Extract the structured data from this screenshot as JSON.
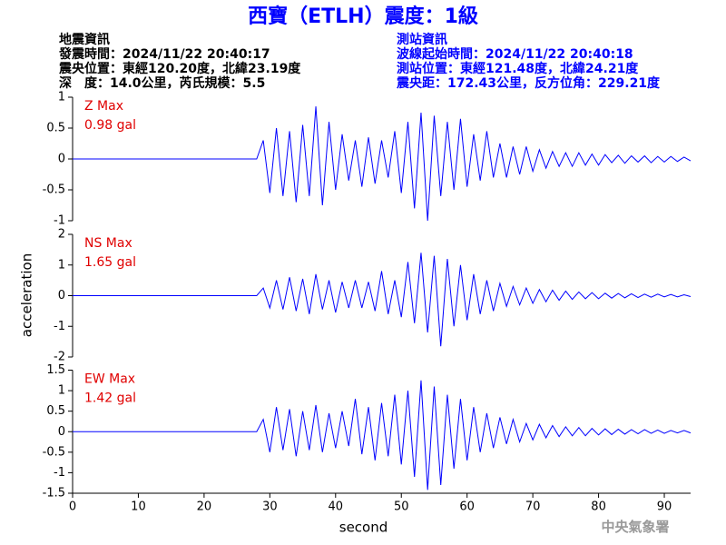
{
  "title": "西寶（ETLH）震度：1級",
  "info_left": [
    "地震資訊",
    "發震時間：2024/11/22 20:40:17",
    "震央位置：東經120.20度，北緯23.19度",
    "深　度：14.0公里，芮氏規模：5.5"
  ],
  "info_right": [
    "測站資訊",
    "波線起始時間：2024/11/22 20:40:18",
    "測站位置：東經121.48度，北緯24.21度",
    "震央距：172.43公里，反方位角：229.21度"
  ],
  "ylabel": "acceleration",
  "watermark": "中央氣象署",
  "chart_data": [
    {
      "type": "line",
      "label": "Z Max",
      "max_label": "0.98 gal",
      "color": "#0000ff",
      "xlim": [
        0,
        94
      ],
      "ylim": [
        -1,
        1
      ],
      "yticks": [
        -1,
        -0.5,
        0,
        0.5,
        1
      ],
      "x": [
        0,
        28,
        29,
        30,
        31,
        32,
        33,
        34,
        35,
        36,
        37,
        38,
        39,
        40,
        41,
        42,
        43,
        44,
        45,
        46,
        47,
        48,
        49,
        50,
        51,
        52,
        53,
        54,
        55,
        56,
        57,
        58,
        59,
        60,
        61,
        62,
        63,
        64,
        65,
        66,
        67,
        68,
        69,
        70,
        71,
        72,
        73,
        74,
        75,
        76,
        77,
        78,
        79,
        80,
        81,
        82,
        83,
        84,
        85,
        86,
        87,
        88,
        89,
        90,
        91,
        92,
        93,
        94
      ],
      "values": [
        0,
        0,
        0.3,
        -0.55,
        0.5,
        -0.6,
        0.45,
        -0.7,
        0.55,
        -0.6,
        0.85,
        -0.75,
        0.6,
        -0.5,
        0.4,
        -0.35,
        0.3,
        -0.45,
        0.35,
        -0.4,
        0.3,
        -0.3,
        0.45,
        -0.55,
        0.6,
        -0.8,
        0.75,
        -1.0,
        0.7,
        -0.6,
        0.6,
        -0.5,
        0.65,
        -0.45,
        0.4,
        -0.35,
        0.45,
        -0.3,
        0.25,
        -0.3,
        0.2,
        -0.25,
        0.2,
        -0.2,
        0.15,
        -0.15,
        0.12,
        -0.12,
        0.1,
        -0.12,
        0.1,
        -0.1,
        0.08,
        -0.1,
        0.07,
        -0.06,
        0.06,
        -0.07,
        0.05,
        -0.05,
        0.05,
        -0.06,
        0.04,
        -0.05,
        0.04,
        -0.04,
        0.03,
        -0.03
      ]
    },
    {
      "type": "line",
      "label": "NS Max",
      "max_label": "1.65 gal",
      "color": "#0000ff",
      "xlim": [
        0,
        94
      ],
      "ylim": [
        -2,
        2
      ],
      "yticks": [
        -2,
        -1,
        0,
        1,
        2
      ],
      "x": [
        0,
        28,
        29,
        30,
        31,
        32,
        33,
        34,
        35,
        36,
        37,
        38,
        39,
        40,
        41,
        42,
        43,
        44,
        45,
        46,
        47,
        48,
        49,
        50,
        51,
        52,
        53,
        54,
        55,
        56,
        57,
        58,
        59,
        60,
        61,
        62,
        63,
        64,
        65,
        66,
        67,
        68,
        69,
        70,
        71,
        72,
        73,
        74,
        75,
        76,
        77,
        78,
        79,
        80,
        81,
        82,
        83,
        84,
        85,
        86,
        87,
        88,
        89,
        90,
        91,
        92,
        93,
        94
      ],
      "values": [
        0,
        0,
        0.25,
        -0.4,
        0.5,
        -0.45,
        0.6,
        -0.5,
        0.55,
        -0.6,
        0.7,
        -0.45,
        0.5,
        -0.55,
        0.45,
        -0.4,
        0.5,
        -0.4,
        0.45,
        -0.5,
        0.8,
        -0.6,
        0.5,
        -0.7,
        1.1,
        -0.9,
        1.4,
        -1.2,
        1.3,
        -1.65,
        1.2,
        -1.0,
        1.0,
        -0.8,
        0.7,
        -0.6,
        0.5,
        -0.5,
        0.4,
        -0.35,
        0.3,
        -0.3,
        0.25,
        -0.25,
        0.2,
        -0.2,
        0.18,
        -0.15,
        0.15,
        -0.12,
        0.12,
        -0.1,
        0.1,
        -0.1,
        0.08,
        -0.08,
        0.07,
        -0.07,
        0.06,
        -0.06,
        0.05,
        -0.05,
        0.05,
        -0.04,
        0.04,
        -0.04,
        0.03,
        -0.03
      ]
    },
    {
      "type": "line",
      "label": "EW Max",
      "max_label": "1.42 gal",
      "color": "#0000ff",
      "xlim": [
        0,
        94
      ],
      "ylim": [
        -1.5,
        1.5
      ],
      "yticks": [
        -1.5,
        -1,
        -0.5,
        0,
        0.5,
        1,
        1.5
      ],
      "xticks": [
        0,
        10,
        20,
        30,
        40,
        50,
        60,
        70,
        80,
        90
      ],
      "xlabel": "second",
      "x": [
        0,
        28,
        29,
        30,
        31,
        32,
        33,
        34,
        35,
        36,
        37,
        38,
        39,
        40,
        41,
        42,
        43,
        44,
        45,
        46,
        47,
        48,
        49,
        50,
        51,
        52,
        53,
        54,
        55,
        56,
        57,
        58,
        59,
        60,
        61,
        62,
        63,
        64,
        65,
        66,
        67,
        68,
        69,
        70,
        71,
        72,
        73,
        74,
        75,
        76,
        77,
        78,
        79,
        80,
        81,
        82,
        83,
        84,
        85,
        86,
        87,
        88,
        89,
        90,
        91,
        92,
        93,
        94
      ],
      "values": [
        0,
        0,
        0.3,
        -0.5,
        0.6,
        -0.45,
        0.55,
        -0.6,
        0.5,
        -0.45,
        0.65,
        -0.5,
        0.45,
        -0.4,
        0.5,
        -0.35,
        0.8,
        -0.55,
        0.6,
        -0.7,
        0.7,
        -0.6,
        0.9,
        -0.8,
        1.0,
        -1.1,
        1.25,
        -1.42,
        1.1,
        -1.3,
        0.9,
        -0.9,
        0.8,
        -0.7,
        0.6,
        -0.5,
        0.45,
        -0.4,
        0.35,
        -0.3,
        0.3,
        -0.25,
        0.2,
        -0.2,
        0.18,
        -0.15,
        0.15,
        -0.12,
        0.12,
        -0.1,
        0.1,
        -0.1,
        0.08,
        -0.08,
        0.07,
        -0.07,
        0.06,
        -0.06,
        0.05,
        -0.05,
        0.05,
        -0.04,
        0.04,
        -0.04,
        0.03,
        -0.03,
        0.03,
        -0.03
      ]
    }
  ]
}
